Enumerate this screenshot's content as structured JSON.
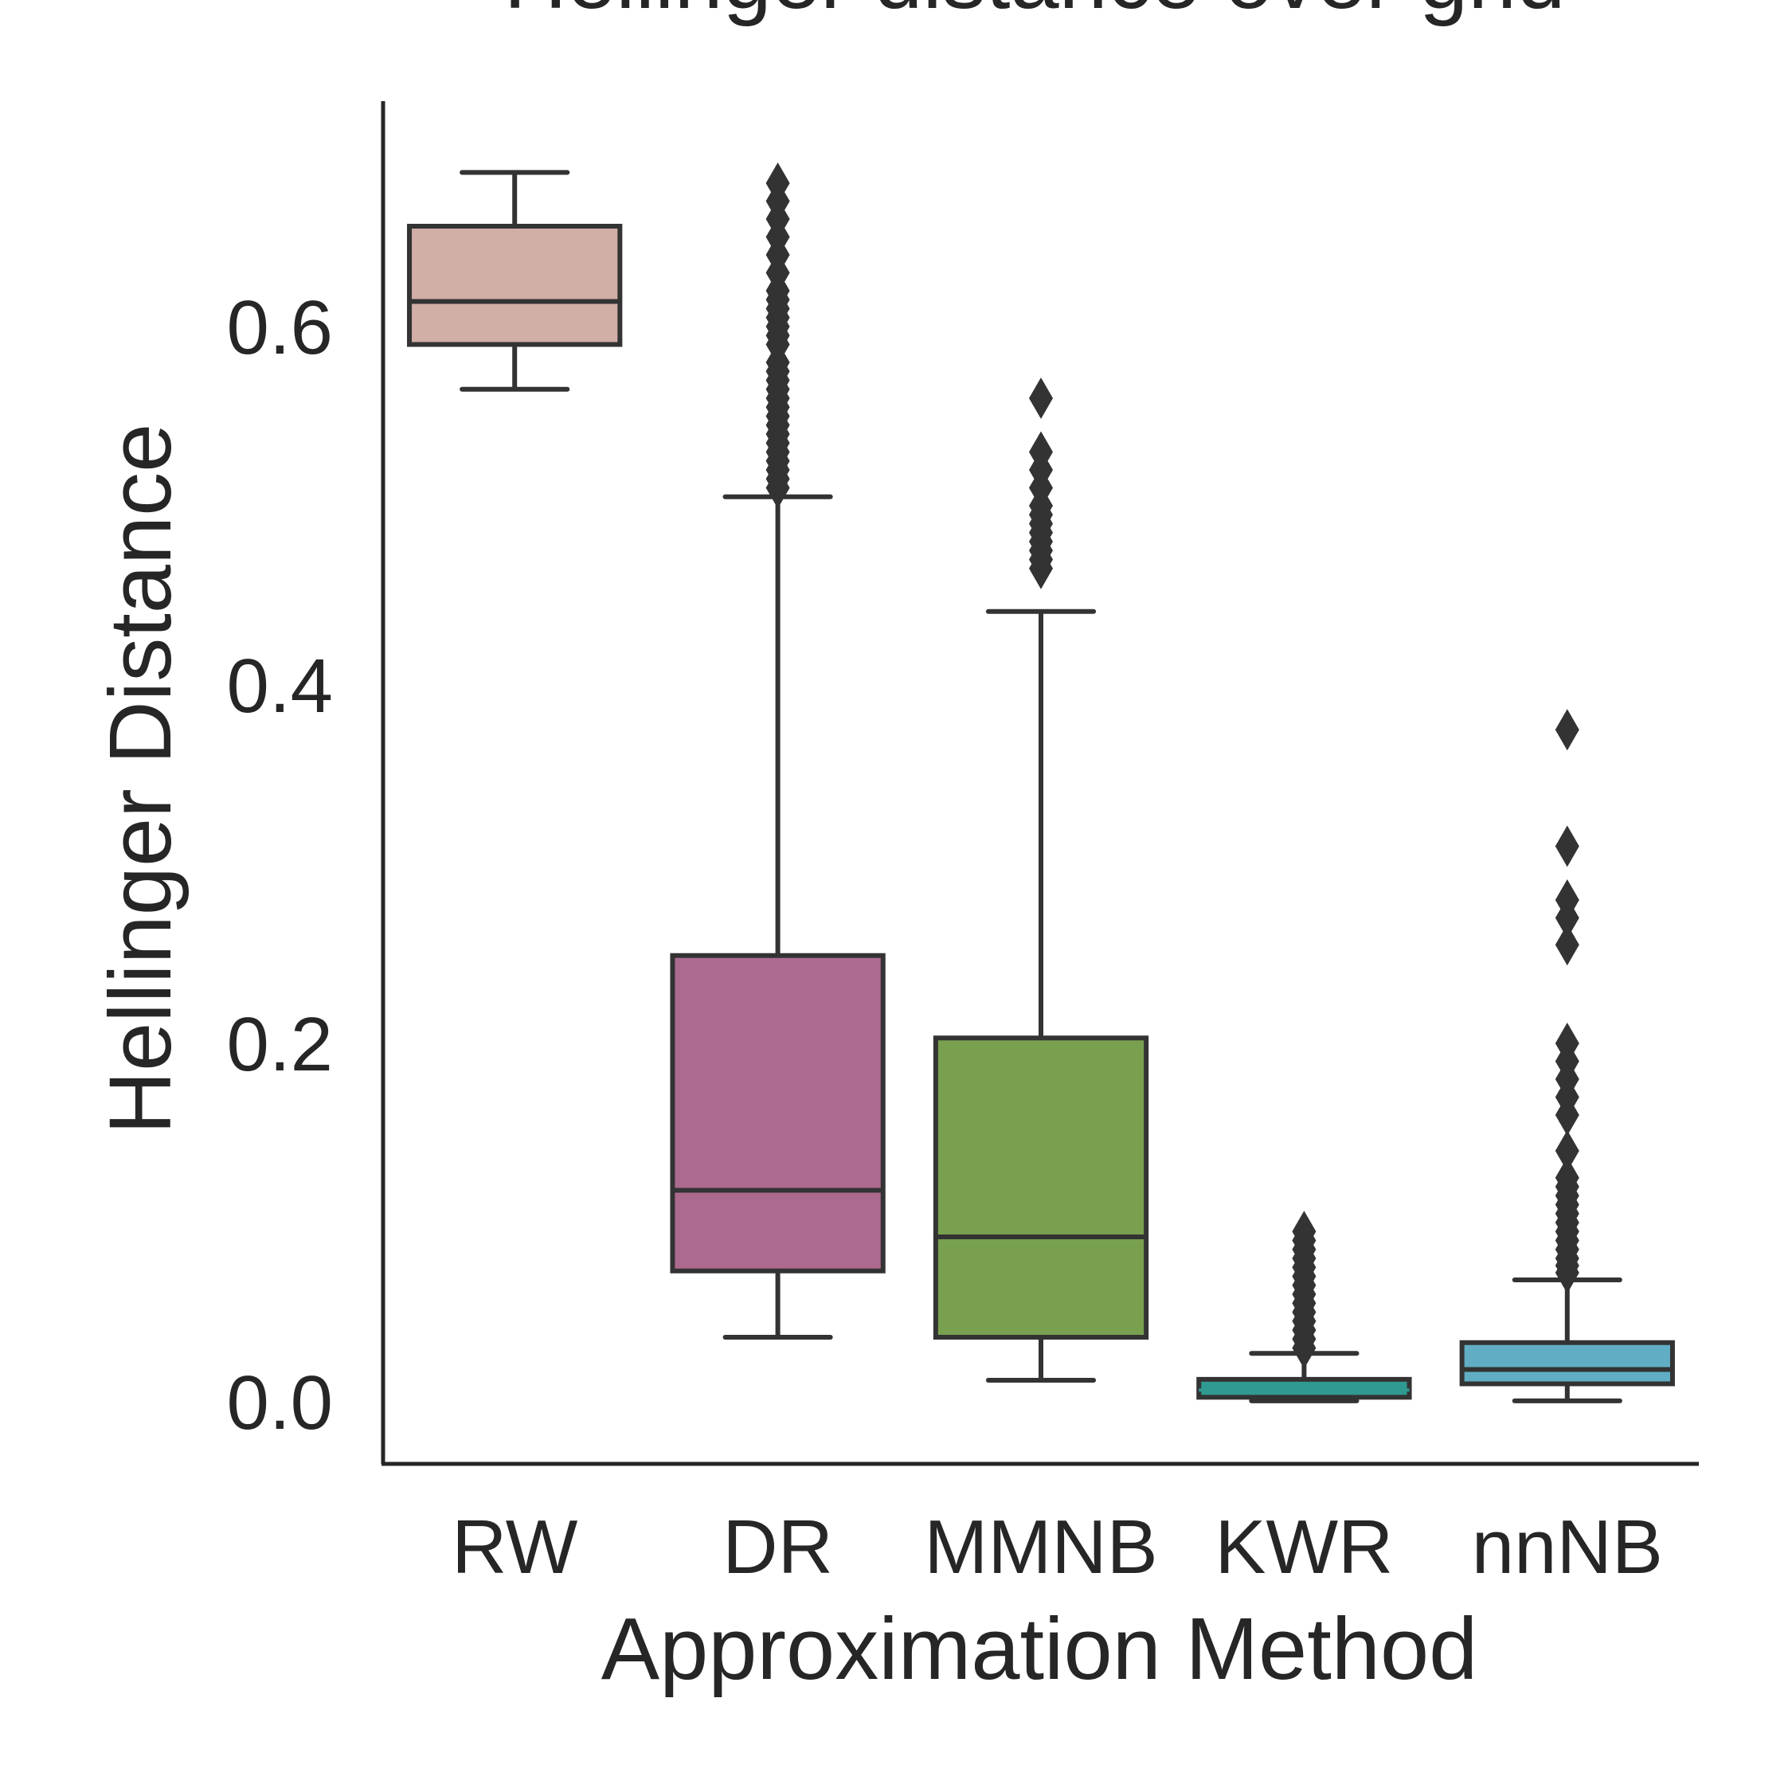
{
  "chart_data": {
    "type": "box",
    "title": "Hellinger distance over grid",
    "xlabel": "Approximation Method",
    "ylabel": "Hellinger Distance",
    "ylim": [
      -0.03,
      0.73
    ],
    "yticks": [
      0.0,
      0.2,
      0.4,
      0.6
    ],
    "ytick_labels": [
      "0.0",
      "0.2",
      "0.4",
      "0.6"
    ],
    "grid": false,
    "categories": [
      "RW",
      "DR",
      "MMNB",
      "KWR",
      "nnNB"
    ],
    "boxes": [
      {
        "category": "RW",
        "color": "#d1aea6",
        "whisker_low": 0.565,
        "q1": 0.59,
        "median": 0.614,
        "q3": 0.656,
        "whisker_high": 0.686,
        "outliers": []
      },
      {
        "category": "DR",
        "color": "#ac6a8e",
        "whisker_low": 0.036,
        "q1": 0.073,
        "median": 0.118,
        "q3": 0.249,
        "whisker_high": 0.505,
        "outliers": [
          0.51,
          0.515,
          0.52,
          0.525,
          0.53,
          0.535,
          0.54,
          0.545,
          0.55,
          0.555,
          0.56,
          0.565,
          0.57,
          0.575,
          0.58,
          0.59,
          0.595,
          0.6,
          0.605,
          0.61,
          0.615,
          0.62,
          0.63,
          0.64,
          0.65,
          0.66,
          0.67,
          0.68
        ]
      },
      {
        "category": "MMNB",
        "color": "#79a04f",
        "whisker_low": 0.012,
        "q1": 0.036,
        "median": 0.092,
        "q3": 0.203,
        "whisker_high": 0.441,
        "outliers": [
          0.465,
          0.47,
          0.475,
          0.48,
          0.485,
          0.49,
          0.495,
          0.5,
          0.51,
          0.52,
          0.53,
          0.56
        ]
      },
      {
        "category": "KWR",
        "color": "#2f9a91",
        "whisker_low": 0.0005,
        "q1": 0.0025,
        "median": 0.0065,
        "q3": 0.0125,
        "whisker_high": 0.027,
        "outliers": [
          0.03,
          0.035,
          0.04,
          0.045,
          0.05,
          0.055,
          0.06,
          0.065,
          0.07,
          0.075,
          0.08,
          0.085,
          0.09,
          0.095
        ]
      },
      {
        "category": "nnNB",
        "color": "#61aec4",
        "whisker_low": 0.0005,
        "q1": 0.01,
        "median": 0.018,
        "q3": 0.033,
        "whisker_high": 0.068,
        "outliers": [
          0.072,
          0.076,
          0.08,
          0.085,
          0.09,
          0.095,
          0.1,
          0.105,
          0.11,
          0.115,
          0.12,
          0.125,
          0.14,
          0.16,
          0.17,
          0.18,
          0.19,
          0.2,
          0.255,
          0.27,
          0.28,
          0.31,
          0.375
        ]
      }
    ]
  }
}
